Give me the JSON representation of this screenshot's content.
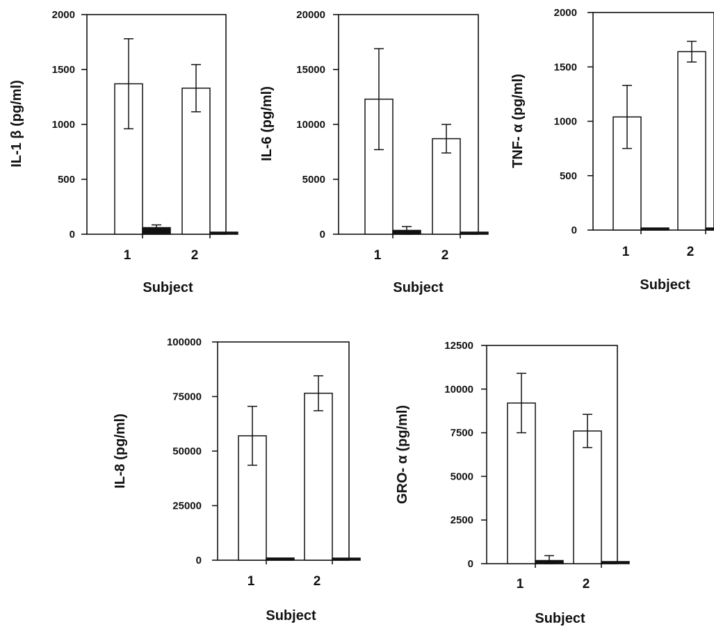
{
  "chart_data": [
    {
      "type": "bar",
      "ylabel": "IL-1 β (pg/ml)",
      "xlabel": "Subject",
      "categories": [
        "1",
        "2"
      ],
      "ylim": [
        0,
        2000
      ],
      "yticks": [
        "0",
        "500",
        "1000",
        "1500",
        "2000"
      ],
      "series": [
        {
          "fill": "#ffffff",
          "values": [
            1370,
            1330
          ],
          "err": [
            410,
            215
          ]
        },
        {
          "fill": "#111111",
          "values": [
            60,
            0
          ],
          "err": [
            25,
            0
          ]
        }
      ]
    },
    {
      "type": "bar",
      "ylabel": "IL-6 (pg/ml)",
      "xlabel": "Subject",
      "categories": [
        "1",
        "2"
      ],
      "ylim": [
        0,
        20000
      ],
      "yticks": [
        "0",
        "5000",
        "10000",
        "15000",
        "20000"
      ],
      "series": [
        {
          "fill": "#ffffff",
          "values": [
            12300,
            8700
          ],
          "err": [
            4600,
            1300
          ]
        },
        {
          "fill": "#111111",
          "values": [
            350,
            0
          ],
          "err": [
            350,
            0
          ]
        }
      ]
    },
    {
      "type": "bar",
      "ylabel": "TNF- α (pg/ml)",
      "xlabel": "Subject",
      "categories": [
        "1",
        "2"
      ],
      "ylim": [
        0,
        2000
      ],
      "yticks": [
        "0",
        "500",
        "1000",
        "1500",
        "2000"
      ],
      "series": [
        {
          "fill": "#ffffff",
          "values": [
            1040,
            1640
          ],
          "err": [
            290,
            95
          ]
        },
        {
          "fill": "#111111",
          "values": [
            5,
            5
          ],
          "err": [
            0,
            0
          ]
        }
      ]
    },
    {
      "type": "bar",
      "ylabel": "IL-8 (pg/ml)",
      "xlabel": "Subject",
      "categories": [
        "1",
        "2"
      ],
      "ylim": [
        0,
        100000
      ],
      "yticks": [
        "0",
        "25000",
        "50000",
        "75000",
        "100000"
      ],
      "series": [
        {
          "fill": "#ffffff",
          "values": [
            57000,
            76500
          ],
          "err": [
            13500,
            8000
          ]
        },
        {
          "fill": "#111111",
          "values": [
            1000,
            0
          ],
          "err": [
            0,
            0
          ]
        }
      ]
    },
    {
      "type": "bar",
      "ylabel": "GRO- α (pg/ml)",
      "xlabel": "Subject",
      "categories": [
        "1",
        "2"
      ],
      "ylim": [
        0,
        12500
      ],
      "yticks": [
        "0",
        "2500",
        "5000",
        "7500",
        "10000",
        "12500"
      ],
      "series": [
        {
          "fill": "#ffffff",
          "values": [
            9200,
            7600
          ],
          "err": [
            1700,
            950
          ]
        },
        {
          "fill": "#111111",
          "values": [
            180,
            10
          ],
          "err": [
            280,
            0
          ]
        }
      ]
    }
  ]
}
